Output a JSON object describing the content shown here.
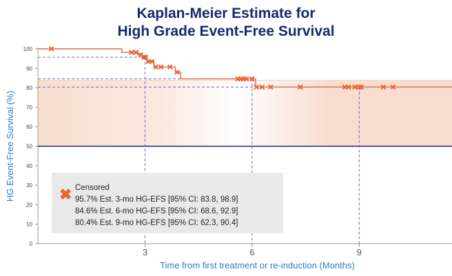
{
  "chart_data": {
    "type": "line",
    "title_line1": "Kaplan-Meier Estimate for",
    "title_line2": "High Grade Event-Free Survival",
    "xlabel": "Time from first treatment or re-induction (Months)",
    "ylabel": "HG Event-Free Survival (%)",
    "xlim": [
      0,
      11.6
    ],
    "ylim": [
      0,
      100
    ],
    "x_ticks": [
      3,
      6,
      9
    ],
    "y_ticks": [
      0,
      10,
      20,
      30,
      40,
      50,
      60,
      70,
      80,
      90,
      100
    ],
    "reference_line": 50,
    "series": [
      {
        "name": "KM estimate",
        "color": "#e8663a",
        "steps": [
          {
            "x": 0,
            "y": 100
          },
          {
            "x": 2.35,
            "y": 98.2
          },
          {
            "x": 2.8,
            "y": 97.0
          },
          {
            "x": 2.92,
            "y": 95.7
          },
          {
            "x": 3.05,
            "y": 93.5
          },
          {
            "x": 3.25,
            "y": 90.7
          },
          {
            "x": 3.85,
            "y": 88.0
          },
          {
            "x": 4.0,
            "y": 84.6
          },
          {
            "x": 6.1,
            "y": 80.4
          },
          {
            "x": 11.6,
            "y": 80.4
          }
        ]
      }
    ],
    "censored": [
      {
        "x": 0.38,
        "y": 100
      },
      {
        "x": 2.62,
        "y": 98.2
      },
      {
        "x": 2.75,
        "y": 98.2
      },
      {
        "x": 2.88,
        "y": 97.0
      },
      {
        "x": 2.97,
        "y": 95.7
      },
      {
        "x": 3.02,
        "y": 95.7
      },
      {
        "x": 3.1,
        "y": 93.5
      },
      {
        "x": 3.2,
        "y": 93.5
      },
      {
        "x": 3.3,
        "y": 90.7
      },
      {
        "x": 3.45,
        "y": 90.7
      },
      {
        "x": 3.7,
        "y": 90.7
      },
      {
        "x": 3.9,
        "y": 88.0
      },
      {
        "x": 5.6,
        "y": 84.6
      },
      {
        "x": 5.68,
        "y": 84.6
      },
      {
        "x": 5.76,
        "y": 84.6
      },
      {
        "x": 5.84,
        "y": 84.6
      },
      {
        "x": 6.0,
        "y": 84.6
      },
      {
        "x": 6.12,
        "y": 80.4
      },
      {
        "x": 6.28,
        "y": 80.4
      },
      {
        "x": 6.52,
        "y": 80.4
      },
      {
        "x": 7.35,
        "y": 80.4
      },
      {
        "x": 8.6,
        "y": 80.4
      },
      {
        "x": 8.7,
        "y": 80.4
      },
      {
        "x": 8.88,
        "y": 80.4
      },
      {
        "x": 9.0,
        "y": 80.4
      },
      {
        "x": 9.06,
        "y": 80.4
      },
      {
        "x": 9.68,
        "y": 80.4
      },
      {
        "x": 9.95,
        "y": 80.4
      }
    ],
    "estimates": [
      {
        "month": 3,
        "value": 95.7,
        "ci": [
          83.8,
          98.9
        ]
      },
      {
        "month": 6,
        "value": 84.6,
        "ci": [
          68.6,
          92.9
        ]
      },
      {
        "month": 9,
        "value": 80.4,
        "ci": [
          62.3,
          90.4
        ]
      }
    ],
    "legend": {
      "censored_label": "Censored",
      "lines": [
        "95.7% Est. 3-mo HG-EFS [95% CI: 83.8, 98.9]",
        "84.6% Est. 6-mo HG-EFS [95% CI: 68.6, 92.9]",
        "80.4% Est. 9-mo HG-EFS [95% CI: 62.3, 90.4]"
      ]
    },
    "colors": {
      "curve": "#e8663a",
      "ci_band": "#fbe6db",
      "reference": "#1b2a6b",
      "guide": "#7a5bc9",
      "title": "#142a6e",
      "axis_label": "#2f7cbf"
    }
  }
}
